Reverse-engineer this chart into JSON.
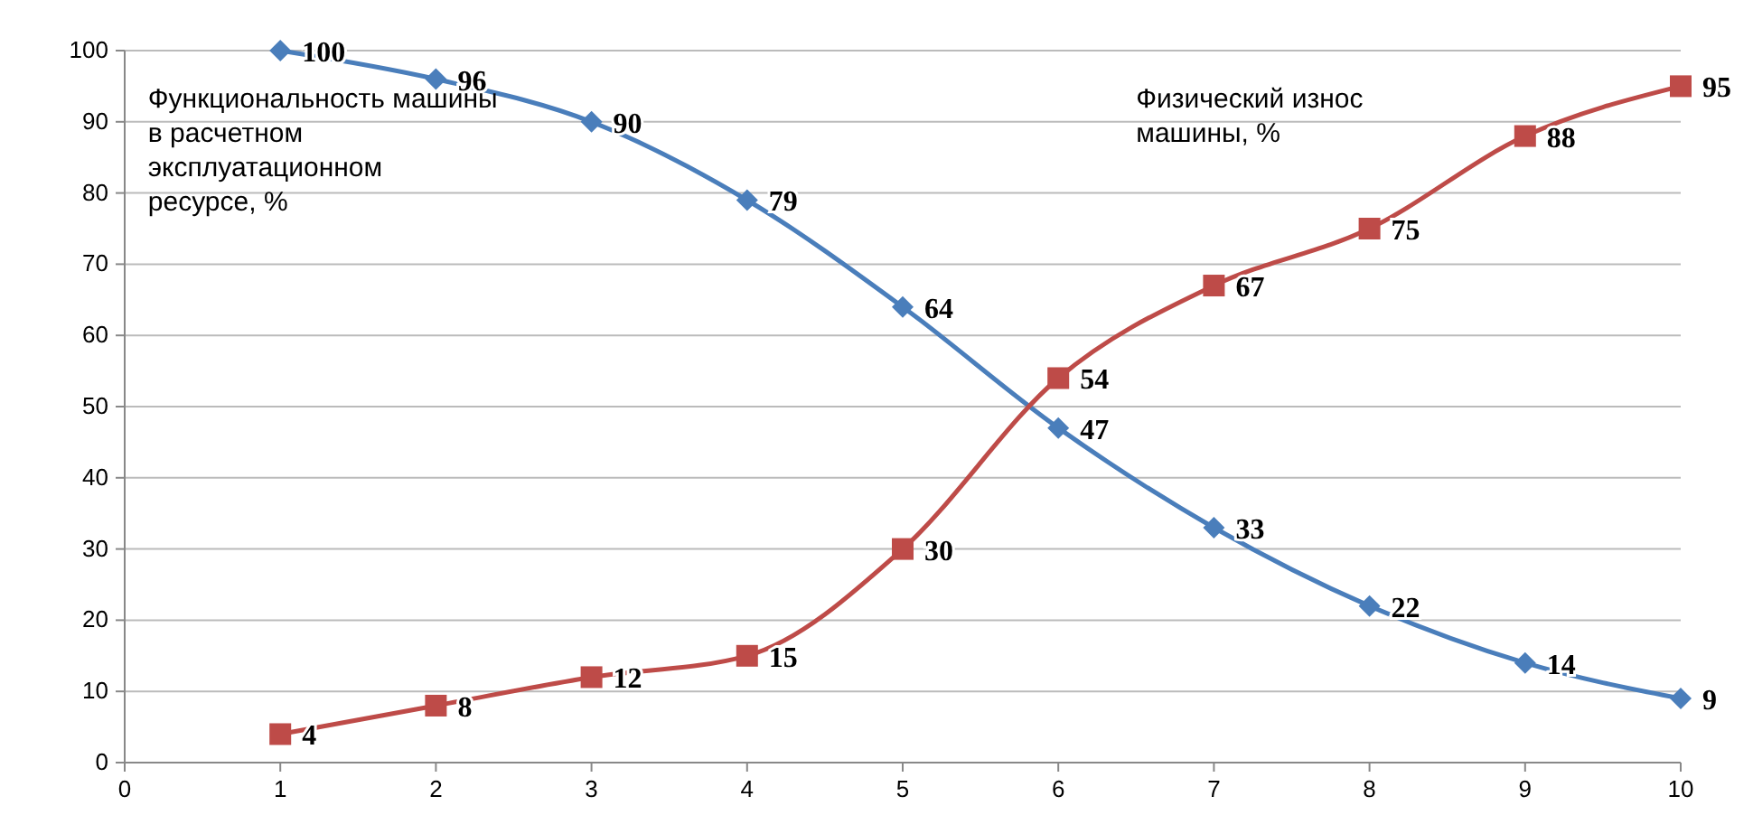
{
  "chart_data": {
    "type": "line",
    "x": [
      1,
      2,
      3,
      4,
      5,
      6,
      7,
      8,
      9,
      10
    ],
    "xlim": [
      0,
      10
    ],
    "xticks": [
      0,
      1,
      2,
      3,
      4,
      5,
      6,
      7,
      8,
      9,
      10
    ],
    "ylim": [
      0,
      100
    ],
    "yticks": [
      0,
      10,
      20,
      30,
      40,
      50,
      60,
      70,
      80,
      90,
      100
    ],
    "grid": "y",
    "data_labels": true,
    "series": [
      {
        "name": "Функциональность машины в расчетном эксплуатационном ресурсе, %",
        "color": "#4a7ebb",
        "marker": "diamond",
        "values": [
          100,
          96,
          90,
          79,
          64,
          47,
          33,
          22,
          14,
          9
        ]
      },
      {
        "name": "Физический износ машины, %",
        "color": "#be4b48",
        "marker": "square",
        "values": [
          4,
          8,
          12,
          15,
          30,
          54,
          67,
          75,
          88,
          95
        ]
      }
    ]
  }
}
